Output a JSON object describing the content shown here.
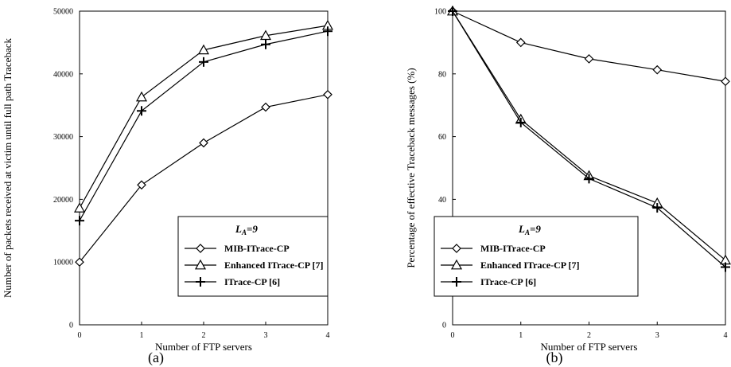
{
  "chart_data": [
    {
      "type": "line",
      "panel_label": "(a)",
      "xlabel": "Number of FTP servers",
      "ylabel": "Number of packets received at victim until full path Traceback",
      "x": [
        0,
        1,
        2,
        3,
        4
      ],
      "xlim": [
        0,
        4
      ],
      "ylim": [
        0,
        50000
      ],
      "xticks": [
        "0",
        "1",
        "2",
        "3",
        "4"
      ],
      "yticks": [
        "0",
        "10000",
        "20000",
        "30000",
        "40000",
        "50000"
      ],
      "legend": {
        "title_main": "L",
        "title_sub": "A",
        "title_rest": "=9",
        "placement": "bottom-right"
      },
      "series": [
        {
          "name": "MIB-ITrace-CP",
          "marker": "diamond",
          "values": [
            10000,
            22300,
            29000,
            34700,
            36700
          ]
        },
        {
          "name": "Enhanced ITrace-CP [7]",
          "marker": "triangle",
          "values": [
            18600,
            36300,
            43800,
            46100,
            47700
          ]
        },
        {
          "name": "ITrace-CP [6]",
          "marker": "plus",
          "values": [
            16600,
            34100,
            41900,
            44700,
            46800
          ]
        }
      ]
    },
    {
      "type": "line",
      "panel_label": "(b)",
      "xlabel": "Number of FTP servers",
      "ylabel": "Percentage of effective Traceback messages (%)",
      "x": [
        0,
        1,
        2,
        3,
        4
      ],
      "xlim": [
        0,
        4
      ],
      "ylim": [
        0,
        100
      ],
      "xticks": [
        "0",
        "1",
        "2",
        "3",
        "4"
      ],
      "yticks": [
        "0",
        "20",
        "40",
        "60",
        "80",
        "100"
      ],
      "legend": {
        "title_main": "L",
        "title_sub": "A",
        "title_rest": "=9",
        "placement": "bottom-right"
      },
      "series": [
        {
          "name": "MIB-ITrace-CP",
          "marker": "diamond",
          "values": [
            100,
            90,
            84.8,
            81.3,
            77.6
          ]
        },
        {
          "name": "Enhanced ITrace-CP [7]",
          "marker": "triangle",
          "values": [
            100,
            65.5,
            47.5,
            38.8,
            20.6
          ]
        },
        {
          "name": "ITrace-CP [6]",
          "marker": "plus",
          "values": [
            100,
            64.5,
            46.6,
            37.3,
            18.4
          ]
        }
      ]
    }
  ]
}
